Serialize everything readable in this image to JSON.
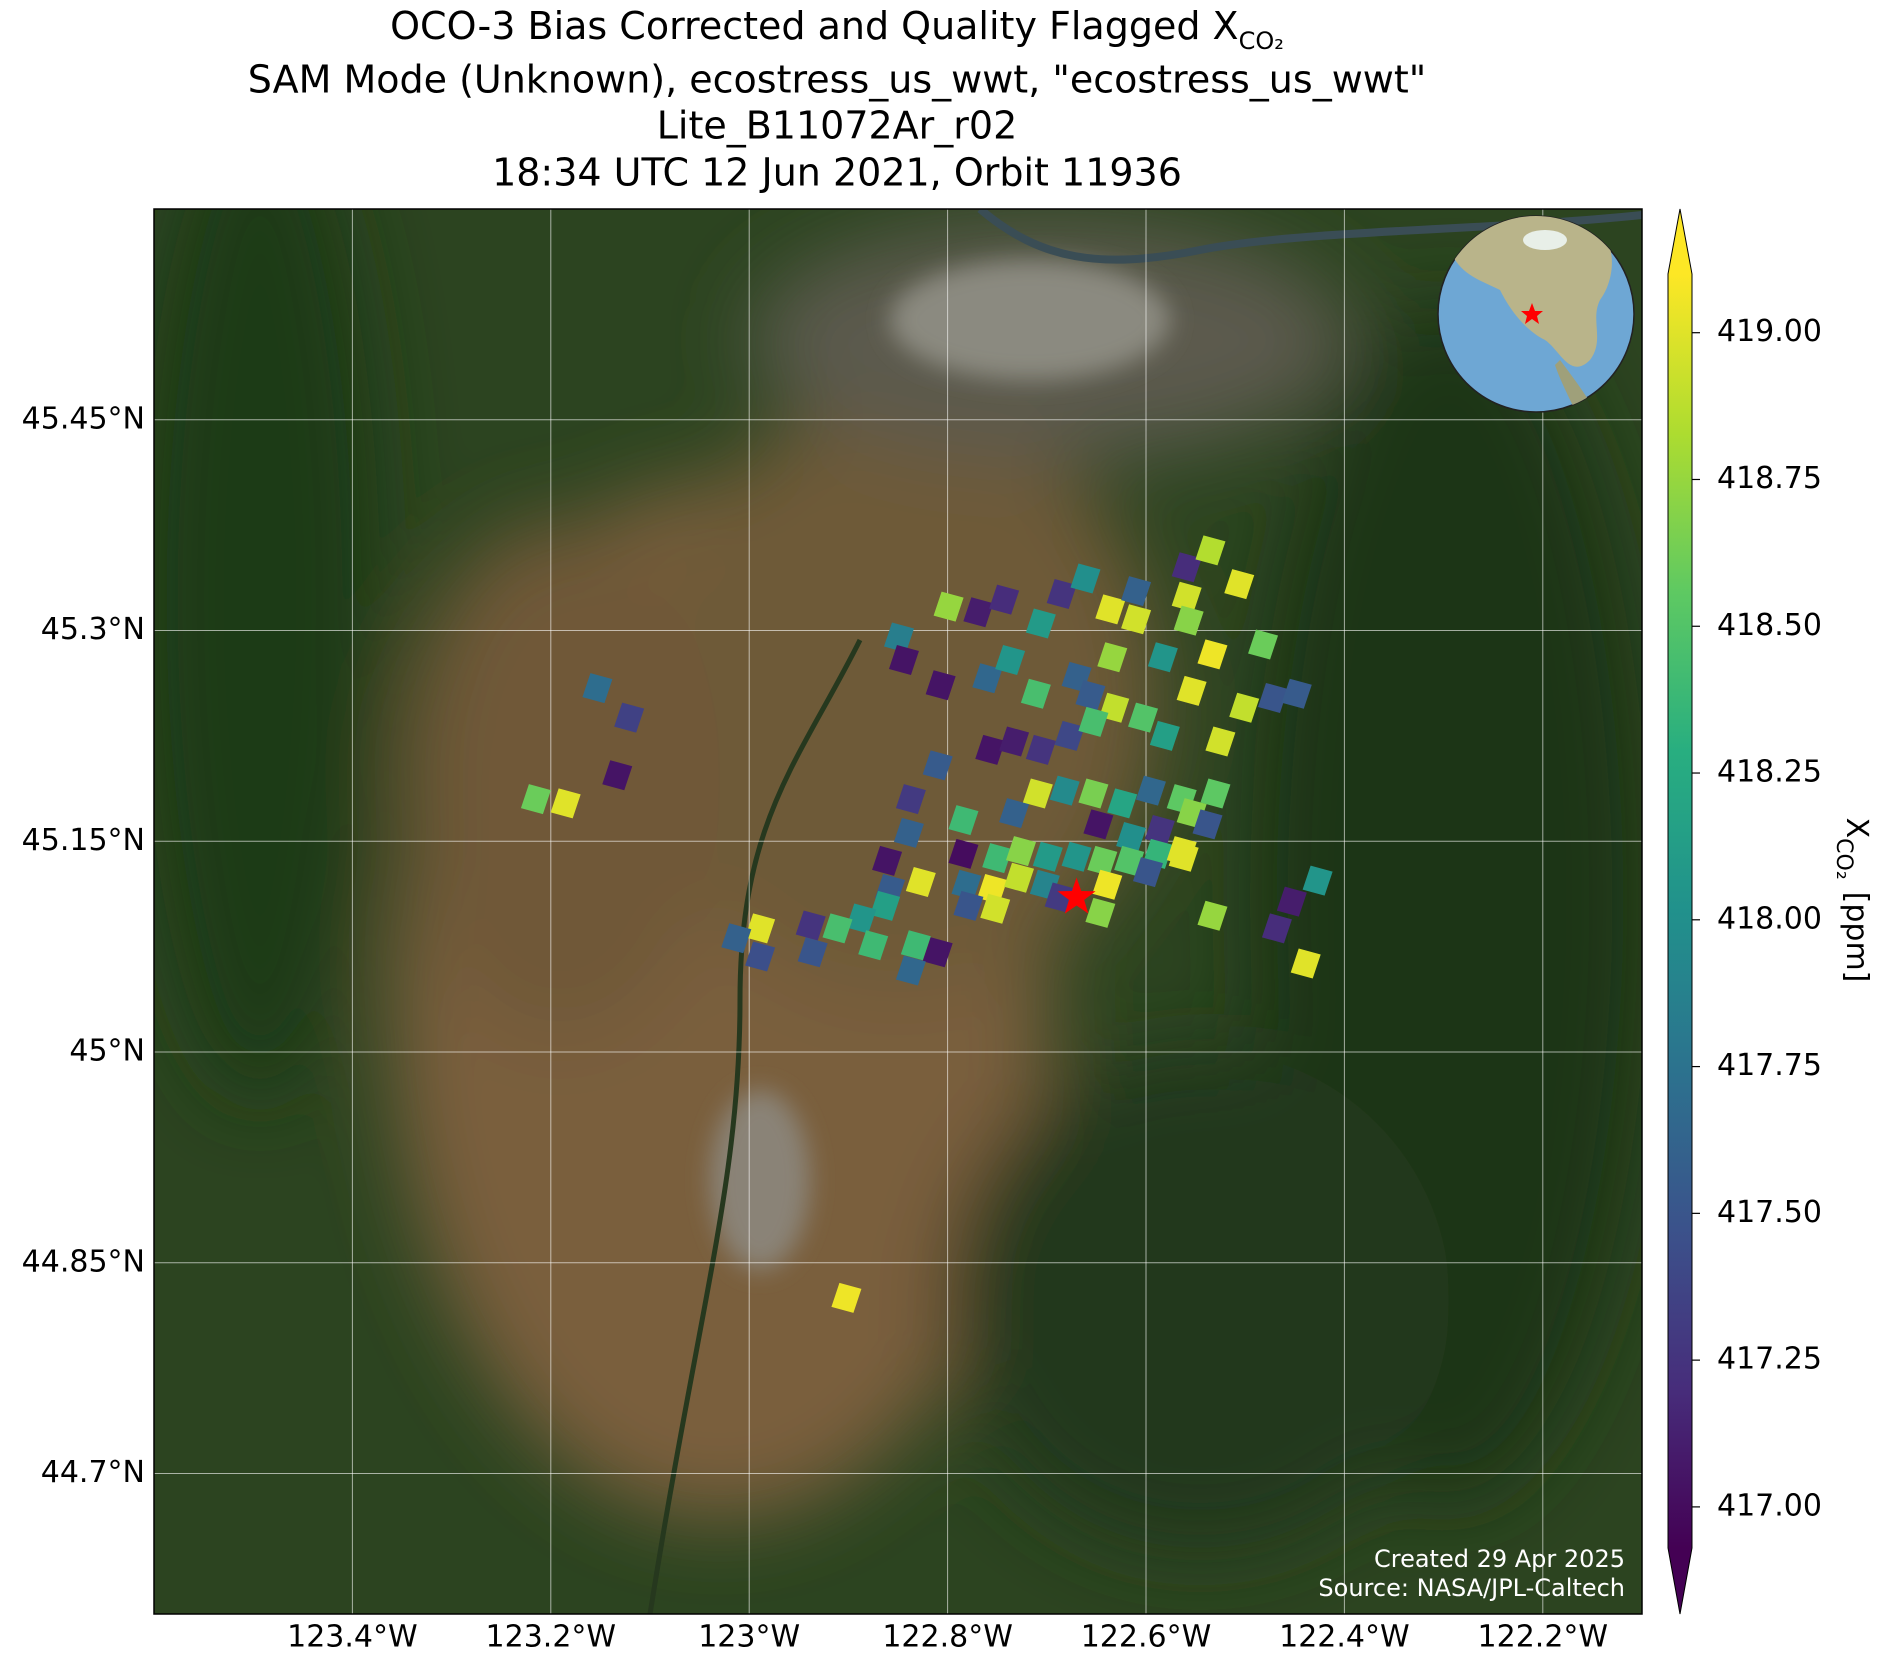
{
  "chart_data": {
    "type": "map",
    "title": "OCO-3 Bias Corrected and Quality Flagged X",
    "title_subscript": "CO₂",
    "subtitle": [
      "SAM Mode (Unknown), ecostress_us_wwt, \"ecostress_us_wwt\"",
      "Lite_B11072Ar_r02",
      "18:34 UTC 12 Jun 2021, Orbit 11936"
    ],
    "xlim": [
      -123.6,
      -122.1
    ],
    "ylim": [
      44.6,
      45.6
    ],
    "xticks": [
      {
        "value": -123.4,
        "label": "123.4°W"
      },
      {
        "value": -123.2,
        "label": "123.2°W"
      },
      {
        "value": -123.0,
        "label": "123°W"
      },
      {
        "value": -122.8,
        "label": "122.8°W"
      },
      {
        "value": -122.6,
        "label": "122.6°W"
      },
      {
        "value": -122.4,
        "label": "122.4°W"
      },
      {
        "value": -122.2,
        "label": "122.2°W"
      }
    ],
    "yticks": [
      {
        "value": 45.45,
        "label": "45.45°N"
      },
      {
        "value": 45.3,
        "label": "45.3°N"
      },
      {
        "value": 45.15,
        "label": "45.15°N"
      },
      {
        "value": 45.0,
        "label": "45°N"
      },
      {
        "value": 44.85,
        "label": "44.85°N"
      },
      {
        "value": 44.7,
        "label": "44.7°N"
      }
    ],
    "grid": true,
    "colormap": "viridis",
    "clim": [
      416.93,
      419.1
    ],
    "colorbar_ticks": [
      {
        "value": 417.0,
        "label": "417.00"
      },
      {
        "value": 417.25,
        "label": "417.25"
      },
      {
        "value": 417.5,
        "label": "417.50"
      },
      {
        "value": 417.75,
        "label": "417.75"
      },
      {
        "value": 418.0,
        "label": "418.00"
      },
      {
        "value": 418.25,
        "label": "418.25"
      },
      {
        "value": 418.5,
        "label": "418.50"
      },
      {
        "value": 418.75,
        "label": "418.75"
      },
      {
        "value": 419.0,
        "label": "419.00"
      }
    ],
    "colorbar_label": "X",
    "colorbar_label_subscript": "CO₂",
    "colorbar_units": "[ppm]",
    "footprints": {
      "lon": [
        -123.153,
        -123.121,
        -123.133,
        -123.215,
        -123.185,
        -122.849,
        -122.844,
        -122.799,
        -122.769,
        -122.743,
        -122.807,
        -122.76,
        -122.737,
        -122.706,
        -122.685,
        -122.661,
        -122.636,
        -122.61,
        -122.559,
        -122.535,
        -122.506,
        -122.559,
        -122.557,
        -122.61,
        -122.634,
        -122.583,
        -122.533,
        -122.482,
        -122.711,
        -122.67,
        -122.656,
        -122.632,
        -122.554,
        -122.501,
        -122.472,
        -122.448,
        -122.757,
        -122.733,
        -122.706,
        -122.677,
        -122.653,
        -122.603,
        -122.581,
        -122.525,
        -122.81,
        -122.837,
        -122.839,
        -122.784,
        -122.733,
        -122.709,
        -122.682,
        -122.653,
        -122.624,
        -122.595,
        -122.564,
        -122.53,
        -122.648,
        -122.615,
        -122.586,
        -122.554,
        -122.538,
        -122.861,
        -122.858,
        -122.784,
        -122.75,
        -122.726,
        -122.699,
        -122.67,
        -122.644,
        -122.617,
        -122.588,
        -122.564,
        -122.781,
        -122.755,
        -122.728,
        -122.702,
        -122.687,
        -122.639,
        -122.598,
        -122.562,
        -122.827,
        -122.863,
        -122.887,
        -122.911,
        -122.832,
        -122.81,
        -122.837,
        -122.875,
        -122.779,
        -122.752,
        -122.646,
        -122.989,
        -123.013,
        -122.989,
        -122.938,
        -122.936,
        -122.533,
        -122.453,
        -122.468,
        -122.427,
        -122.439,
        -122.902
      ],
      "lat": [
        45.259,
        45.238,
        45.197,
        45.18,
        45.177,
        45.295,
        45.279,
        45.317,
        45.313,
        45.322,
        45.261,
        45.266,
        45.279,
        45.305,
        45.326,
        45.337,
        45.315,
        45.328,
        45.345,
        45.357,
        45.333,
        45.324,
        45.307,
        45.308,
        45.281,
        45.281,
        45.283,
        45.29,
        45.255,
        45.267,
        45.254,
        45.245,
        45.257,
        45.245,
        45.252,
        45.255,
        45.215,
        45.221,
        45.215,
        45.225,
        45.235,
        45.238,
        45.225,
        45.221,
        45.204,
        45.18,
        45.156,
        45.165,
        45.17,
        45.184,
        45.186,
        45.184,
        45.177,
        45.186,
        45.18,
        45.184,
        45.162,
        45.153,
        45.158,
        45.17,
        45.162,
        45.136,
        45.116,
        45.141,
        45.138,
        45.143,
        45.139,
        45.139,
        45.136,
        45.136,
        45.141,
        45.143,
        45.119,
        45.116,
        45.124,
        45.119,
        45.11,
        45.119,
        45.128,
        45.139,
        45.121,
        45.104,
        45.095,
        45.088,
        45.076,
        45.071,
        45.058,
        45.076,
        45.104,
        45.102,
        45.099,
        45.088,
        45.081,
        45.068,
        45.09,
        45.071,
        45.097,
        45.107,
        45.088,
        45.122,
        45.063,
        44.825
      ],
      "values": [
        417.7,
        417.35,
        417.05,
        418.6,
        419.0,
        417.85,
        417.05,
        418.75,
        417.1,
        417.2,
        417.05,
        417.65,
        418.05,
        418.1,
        417.25,
        418.0,
        419.0,
        417.6,
        417.2,
        418.85,
        419.0,
        418.95,
        418.7,
        418.95,
        418.75,
        418.05,
        419.05,
        418.6,
        418.45,
        417.6,
        417.55,
        418.9,
        419.0,
        418.9,
        417.5,
        417.55,
        417.05,
        417.1,
        417.25,
        417.4,
        418.45,
        418.5,
        418.15,
        418.95,
        417.55,
        417.3,
        417.6,
        418.4,
        417.6,
        418.95,
        417.95,
        418.65,
        418.2,
        417.65,
        418.55,
        418.55,
        417.05,
        418.0,
        417.25,
        418.7,
        417.5,
        417.05,
        417.55,
        417.0,
        418.4,
        418.7,
        418.1,
        418.05,
        418.6,
        418.5,
        418.35,
        419.0,
        417.7,
        419.05,
        418.9,
        417.9,
        417.3,
        419.05,
        417.5,
        419.0,
        419.0,
        418.15,
        418.05,
        418.45,
        418.4,
        417.05,
        417.65,
        418.4,
        417.5,
        418.95,
        418.7,
        419.0,
        417.6,
        417.45,
        417.25,
        417.5,
        418.75,
        417.1,
        417.2,
        418.05,
        419.0,
        419.05
      ]
    },
    "site": {
      "lon": -122.67,
      "lat": 45.11,
      "color": "#ff0000"
    },
    "footer": [
      "Created 29 Apr 2025",
      "Source: NASA/JPL-Caltech"
    ]
  }
}
